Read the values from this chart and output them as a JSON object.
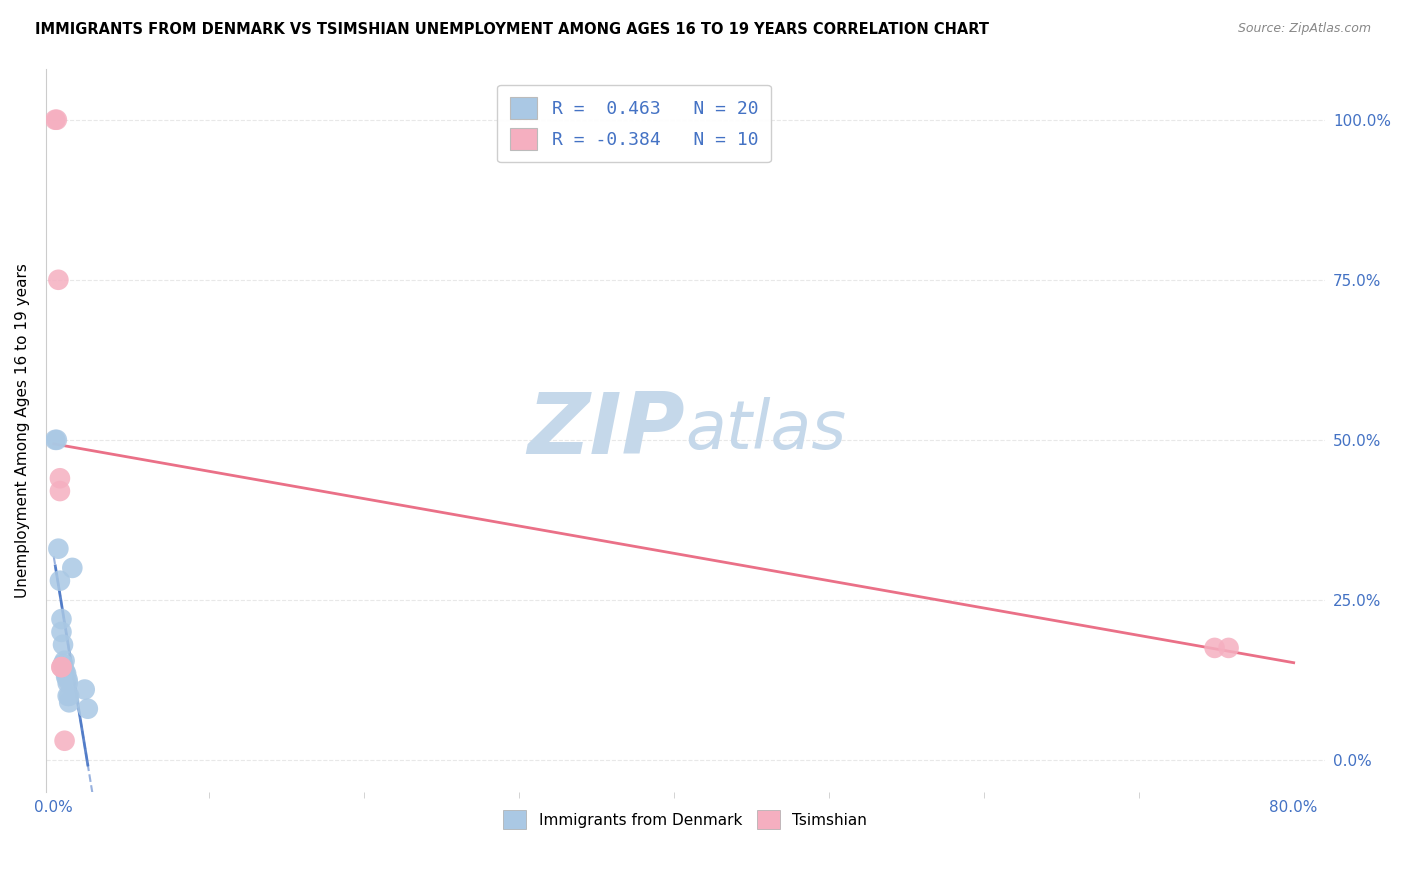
{
  "title": "IMMIGRANTS FROM DENMARK VS TSIMSHIAN UNEMPLOYMENT AMONG AGES 16 TO 19 YEARS CORRELATION CHART",
  "source": "Source: ZipAtlas.com",
  "ylabel": "Unemployment Among Ages 16 to 19 years",
  "xlim": [
    -0.005,
    0.82
  ],
  "ylim": [
    -0.05,
    1.08
  ],
  "blue_x": [
    0.001,
    0.002,
    0.003,
    0.004,
    0.005,
    0.005,
    0.006,
    0.006,
    0.007,
    0.007,
    0.008,
    0.008,
    0.009,
    0.009,
    0.009,
    0.01,
    0.01,
    0.012,
    0.02,
    0.022
  ],
  "blue_y": [
    0.5,
    0.5,
    0.33,
    0.28,
    0.22,
    0.2,
    0.18,
    0.15,
    0.155,
    0.14,
    0.135,
    0.13,
    0.125,
    0.12,
    0.1,
    0.1,
    0.09,
    0.3,
    0.11,
    0.08
  ],
  "pink_x": [
    0.001,
    0.002,
    0.003,
    0.004,
    0.004,
    0.005,
    0.005,
    0.749,
    0.758,
    0.007
  ],
  "pink_y": [
    1.0,
    1.0,
    0.75,
    0.44,
    0.42,
    0.145,
    0.145,
    0.175,
    0.175,
    0.03
  ],
  "blue_R": 0.463,
  "blue_N": 20,
  "pink_R": -0.384,
  "pink_N": 10,
  "blue_scatter_color": "#aac8e4",
  "blue_line_color": "#4472c4",
  "pink_scatter_color": "#f5afc0",
  "pink_line_color": "#e8607a",
  "watermark_zip": "ZIP",
  "watermark_atlas": "atlas",
  "watermark_color": "#c5d8ea",
  "legend_label_blue": "Immigrants from Denmark",
  "legend_label_pink": "Tsimshian",
  "grid_color": "#e8e8e8",
  "ytick_vals": [
    0.0,
    0.25,
    0.5,
    0.75,
    1.0
  ],
  "ytick_labels": [
    "0.0%",
    "25.0%",
    "50.0%",
    "75.0%",
    "100.0%"
  ],
  "xtick_major": [
    0.0,
    0.8
  ],
  "xtick_minor_count": 8
}
